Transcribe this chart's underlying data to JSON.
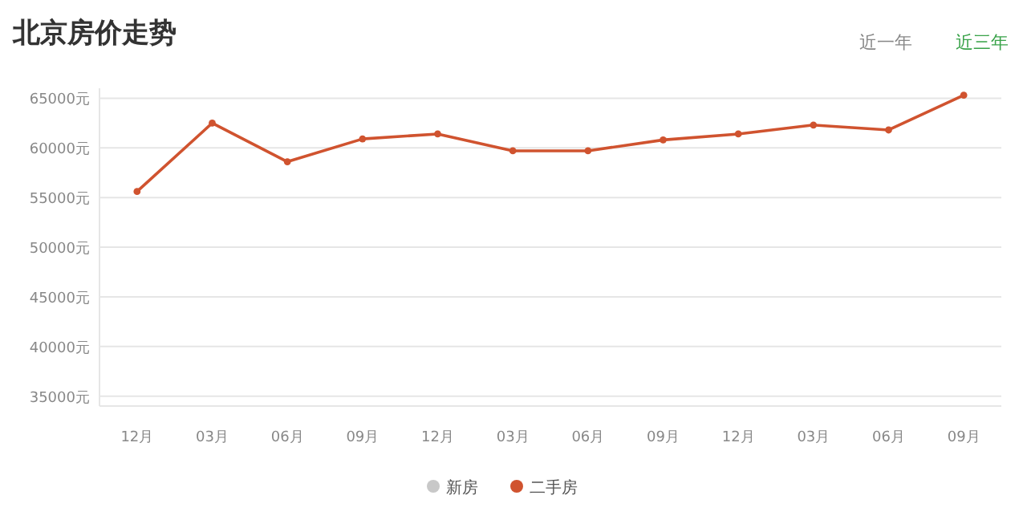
{
  "chart_data": {
    "type": "line",
    "title": "北京房价走势",
    "annotations": [
      "近一年",
      "近三年"
    ],
    "categories": [
      "12月",
      "03月",
      "06月",
      "09月",
      "12月",
      "03月",
      "06月",
      "09月",
      "12月",
      "03月",
      "06月",
      "09月"
    ],
    "series": [
      {
        "name": "新房",
        "color": "#c8c8c8",
        "values": [
          null,
          null,
          null,
          null,
          null,
          null,
          null,
          null,
          null,
          null,
          null,
          null
        ]
      },
      {
        "name": "二手房",
        "color": "#d0532f",
        "values": [
          55600,
          62500,
          58600,
          60900,
          61400,
          59700,
          59700,
          60800,
          61400,
          62300,
          61800,
          65300
        ]
      }
    ],
    "ylim": [
      34000,
      66000
    ],
    "yticks": [
      {
        "value": 35000,
        "label": "35000元"
      },
      {
        "value": 40000,
        "label": "40000元"
      },
      {
        "value": 45000,
        "label": "45000元"
      },
      {
        "value": 50000,
        "label": "50000元"
      },
      {
        "value": 55000,
        "label": "55000元"
      },
      {
        "value": 60000,
        "label": "60000元"
      },
      {
        "value": 65000,
        "label": "65000元"
      }
    ],
    "grid": "y",
    "legend": "bottom",
    "marker": "circle",
    "line_style": "solid"
  }
}
